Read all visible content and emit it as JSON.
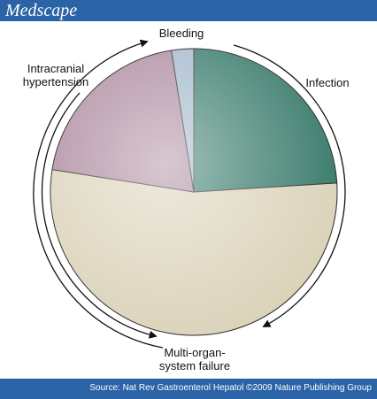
{
  "header": {
    "title": "Medscape"
  },
  "footer": {
    "source": "Source: Nat Rev Gastroenterol Hepatol ©2009 Nature Publishing Group"
  },
  "chart_data": {
    "type": "pie",
    "categories": [
      "Infection",
      "Multi-organ-system failure",
      "Intracranial hypertension",
      "Bleeding"
    ],
    "values": [
      24,
      53.5,
      20,
      2.5
    ],
    "colors": [
      "#2f7464",
      "#d9d0b6",
      "#a88399",
      "#9eb4c8"
    ]
  }
}
